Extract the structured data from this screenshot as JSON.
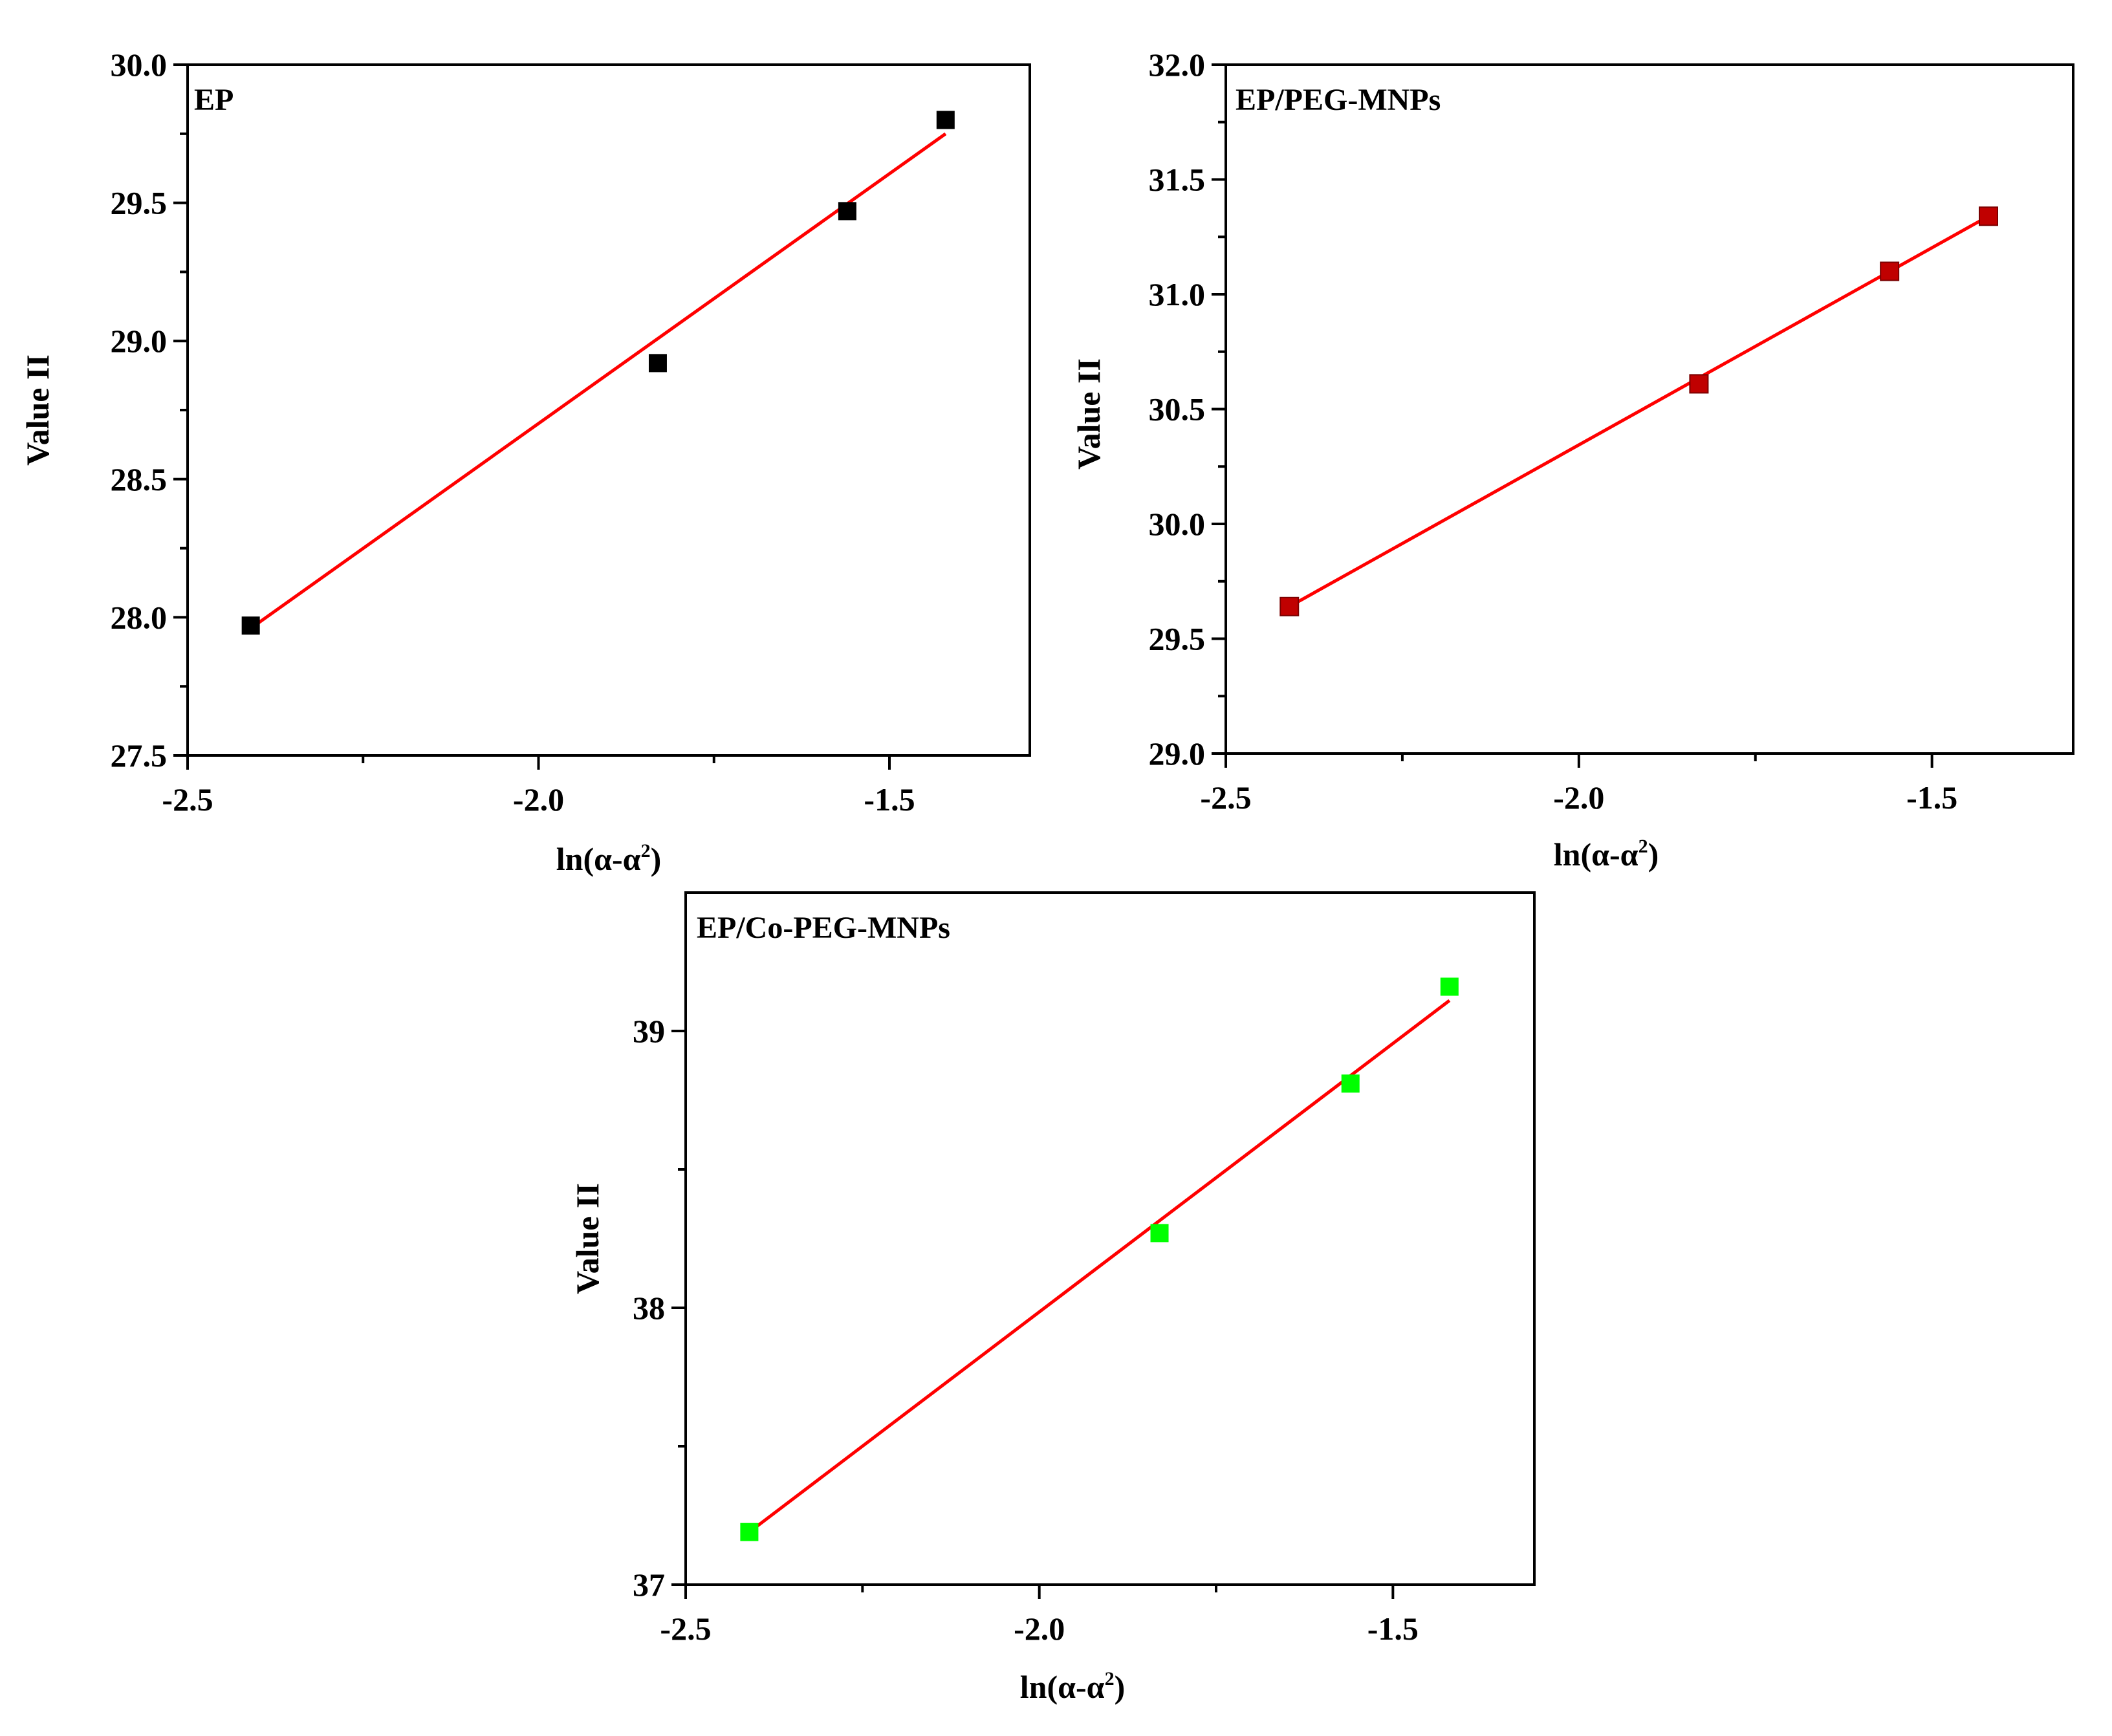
{
  "chart_data": [
    {
      "type": "scatter",
      "panel_label": "EP",
      "xlabel_main": "ln(α-α",
      "xlabel_sup": "2",
      "xlabel_close": ")",
      "ylabel": "Value II",
      "xlim": [
        -2.5,
        -1.3
      ],
      "ylim": [
        27.5,
        30.0
      ],
      "xticks": [
        -2.5,
        -2.0,
        -1.5
      ],
      "xtick_labels": [
        "-2.5",
        "-2.0",
        "-1.5"
      ],
      "yticks": [
        27.5,
        28.0,
        28.5,
        29.0,
        29.5,
        30.0
      ],
      "ytick_labels": [
        "27.5",
        "28.0",
        "28.5",
        "29.0",
        "29.5",
        "30.0"
      ],
      "marker_color": "#000000",
      "fit_color": "#ff0000",
      "x": [
        -2.41,
        -1.83,
        -1.56,
        -1.42
      ],
      "y": [
        27.97,
        28.92,
        29.47,
        29.8
      ],
      "fit": {
        "x": [
          -2.41,
          -1.42
        ],
        "y": [
          27.96,
          29.75
        ]
      }
    },
    {
      "type": "scatter",
      "panel_label": "EP/PEG-MNPs",
      "xlabel_main": "ln(α-α",
      "xlabel_sup": "2",
      "xlabel_close": ")",
      "ylabel": "Value II",
      "xlim": [
        -2.5,
        -1.3
      ],
      "ylim": [
        29.0,
        32.0
      ],
      "xticks": [
        -2.5,
        -2.0,
        -1.5
      ],
      "xtick_labels": [
        "-2.5",
        "-2.0",
        "-1.5"
      ],
      "yticks": [
        29.0,
        29.5,
        30.0,
        30.5,
        31.0,
        31.5,
        32.0
      ],
      "ytick_labels": [
        "29.0",
        "29.5",
        "30.0",
        "30.5",
        "31.0",
        "31.5",
        "32.0"
      ],
      "marker_color": "#c00000",
      "fit_color": "#ff0000",
      "x": [
        -2.41,
        -1.83,
        -1.56,
        -1.42
      ],
      "y": [
        29.64,
        30.61,
        31.1,
        31.34
      ],
      "fit": {
        "x": [
          -2.41,
          -1.42
        ],
        "y": [
          29.64,
          31.34
        ]
      }
    },
    {
      "type": "scatter",
      "panel_label": "EP/Co-PEG-MNPs",
      "xlabel_main": "ln(α-α",
      "xlabel_sup": "2",
      "xlabel_close": ")",
      "ylabel": "Value II",
      "xlim": [
        -2.5,
        -1.3
      ],
      "ylim": [
        37.0,
        39.5
      ],
      "xticks": [
        -2.5,
        -2.0,
        -1.5
      ],
      "xtick_labels": [
        "-2.5",
        "-2.0",
        "-1.5"
      ],
      "yticks": [
        37,
        38,
        39
      ],
      "ytick_labels": [
        "37",
        "38",
        "39"
      ],
      "marker_color": "#00ff00",
      "fit_color": "#ff0000",
      "x": [
        -2.41,
        -1.83,
        -1.56,
        -1.42
      ],
      "y": [
        37.19,
        38.27,
        38.81,
        39.16
      ],
      "fit": {
        "x": [
          -2.41,
          -1.42
        ],
        "y": [
          37.19,
          39.11
        ]
      }
    }
  ]
}
